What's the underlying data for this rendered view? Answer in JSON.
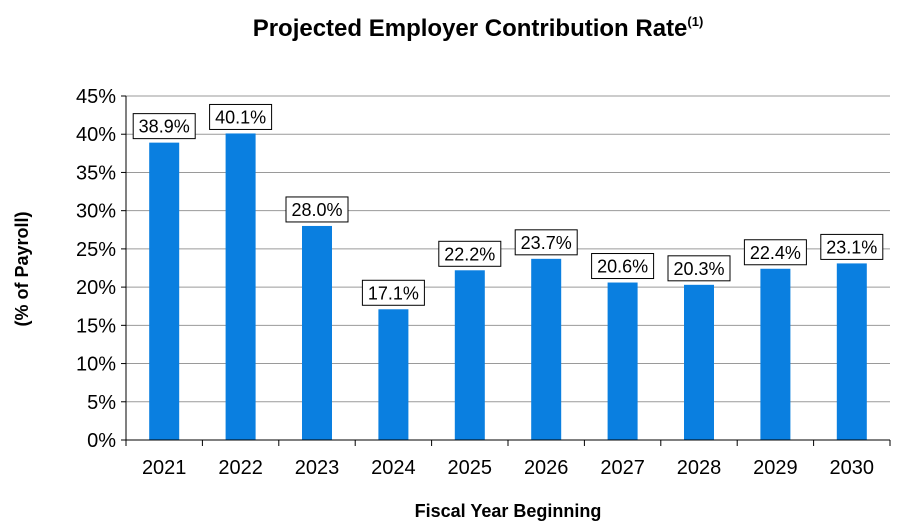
{
  "chart_data": {
    "type": "bar",
    "title": "Projected Employer Contribution Rate",
    "title_superscript": "(1)",
    "xlabel": "Fiscal Year Beginning",
    "ylabel": "(% of Payroll)",
    "categories": [
      "2021",
      "2022",
      "2023",
      "2024",
      "2025",
      "2026",
      "2027",
      "2028",
      "2029",
      "2030"
    ],
    "values": [
      38.9,
      40.1,
      28.0,
      17.1,
      22.2,
      23.7,
      20.6,
      20.3,
      22.4,
      23.1
    ],
    "data_labels": [
      "38.9%",
      "40.1%",
      "28.0%",
      "17.1%",
      "22.2%",
      "23.7%",
      "20.6%",
      "20.3%",
      "22.4%",
      "23.1%"
    ],
    "ylim": [
      0,
      45
    ],
    "y_ticks": [
      0,
      5,
      10,
      15,
      20,
      25,
      30,
      35,
      40,
      45
    ],
    "y_tick_labels": [
      "0%",
      "5%",
      "10%",
      "15%",
      "20%",
      "25%",
      "30%",
      "35%",
      "40%",
      "45%"
    ],
    "grid": "horizontal",
    "legend": "none",
    "colors": {
      "bar": "#0A7FE0",
      "grid": "#9a9a9a",
      "axis": "#000000"
    }
  }
}
